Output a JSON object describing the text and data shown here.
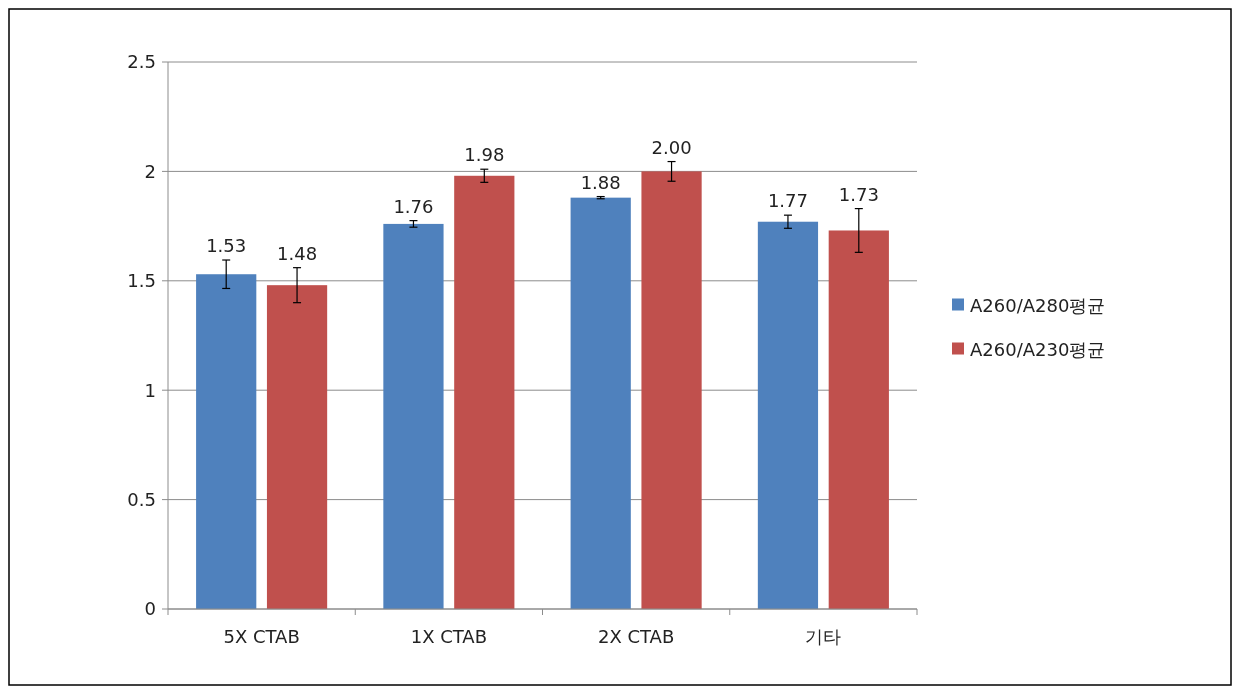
{
  "chart_data": {
    "type": "bar",
    "categories": [
      "5X CTAB",
      "1X CTAB",
      "2X CTAB",
      "기타"
    ],
    "series": [
      {
        "name": "A260/A280평균",
        "color": "#4f81bd",
        "values": [
          1.53,
          1.76,
          1.88,
          1.77
        ],
        "errors": [
          0.065,
          0.015,
          0.005,
          0.03
        ],
        "value_labels": [
          "1.53",
          "1.76",
          "1.88",
          "1.77"
        ]
      },
      {
        "name": "A260/A230평균",
        "color": "#c0504d",
        "values": [
          1.48,
          1.98,
          2.0,
          1.73
        ],
        "errors": [
          0.08,
          0.03,
          0.045,
          0.1
        ],
        "value_labels": [
          "1.48",
          "1.98",
          "2.00",
          "1.73"
        ]
      }
    ],
    "ylim": [
      0,
      2.5
    ],
    "yticks": [
      0,
      0.5,
      1,
      1.5,
      2,
      2.5
    ],
    "grid": "y",
    "legend": "right"
  }
}
